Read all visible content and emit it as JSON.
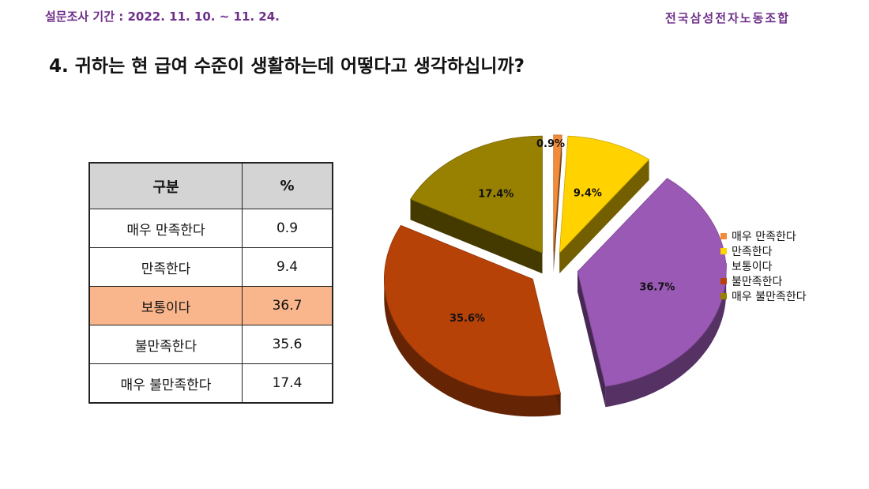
{
  "header": {
    "survey_period": "설문조사 기간 : 2022. 11. 10. ~ 11. 24.",
    "union_name": "전국삼성전자노동조합"
  },
  "question": {
    "title": "4. 귀하는 현 급여 수준이 생활하는데 어떻다고 생각하십니까?"
  },
  "table": {
    "headers": [
      "구분",
      "%"
    ],
    "rows": [
      {
        "label": "매우 만족한다",
        "value": "0.9"
      },
      {
        "label": "만족한다",
        "value": "9.4"
      },
      {
        "label": "보통이다",
        "value": "36.7"
      },
      {
        "label": "불만족한다",
        "value": "35.6"
      },
      {
        "label": "매우 불만족한다",
        "value": "17.4"
      }
    ],
    "highlight_color": "#f9b68c"
  },
  "chart_data": {
    "type": "pie",
    "style": "3d-exploded",
    "categories": [
      "매우 만족한다",
      "만족한다",
      "보통이다",
      "불만족한다",
      "매우 불만족한다"
    ],
    "values": [
      0.9,
      9.4,
      36.7,
      35.6,
      17.4
    ],
    "data_labels": [
      "0.9%",
      "9.4%",
      "36.7%",
      "35.6%",
      "17.4%"
    ],
    "colors": [
      "#f28c3a",
      "#ffd200",
      "#9b59b6",
      "#b74208",
      "#988000"
    ],
    "legend_position": "right",
    "title": ""
  }
}
